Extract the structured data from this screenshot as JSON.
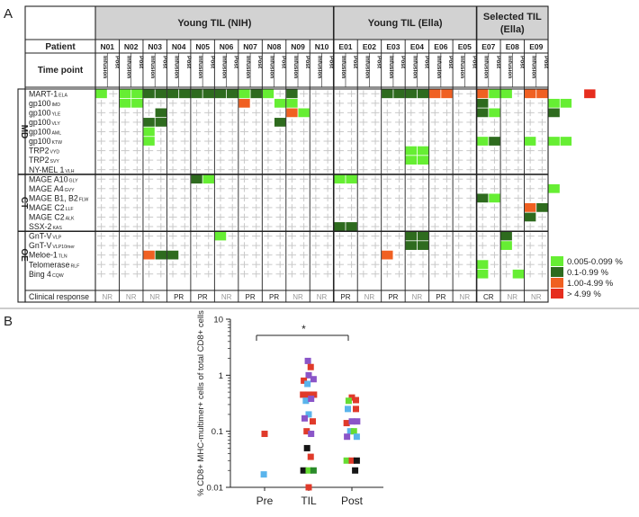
{
  "panel_a": {
    "label": "A",
    "header_row1": "Patient",
    "header_row2": "Time point",
    "infusion_label": "Infusion",
    "post_label": "Post",
    "groups": [
      {
        "name": "Young TIL (NIH)"
      },
      {
        "name": "Young TIL (Ella)"
      },
      {
        "name": "Selected TIL",
        "name2": "(Ella)"
      }
    ],
    "patients": [
      "N01",
      "N02",
      "N03",
      "N04",
      "N05",
      "N06",
      "N07",
      "N08",
      "N09",
      "N10",
      "E01",
      "E02",
      "E03",
      "E04",
      "E06",
      "E05",
      "E07",
      "E08",
      "E09"
    ],
    "categories": [
      {
        "name": "MD",
        "rows": [
          {
            "label": "MART-1",
            "sub": "ELA"
          },
          {
            "label": "gp100",
            "sub": "IMD"
          },
          {
            "label": "gp100",
            "sub": "YLE"
          },
          {
            "label": "gp100",
            "sub": "VLY"
          },
          {
            "label": "gp100",
            "sub": "AML"
          },
          {
            "label": "gp100",
            "sub": "KTW"
          },
          {
            "label": "TRP2",
            "sub": "VYD"
          },
          {
            "label": "TRP2",
            "sub": "SVY"
          },
          {
            "label": "NY-MEL 1",
            "sub": "VLH"
          }
        ]
      },
      {
        "name": "CT",
        "rows": [
          {
            "label": "MAGE A10",
            "sub": "GLY"
          },
          {
            "label": "MAGE A4",
            "sub": "GVY"
          },
          {
            "label": "MAGE B1, B2",
            "sub": "FLW"
          },
          {
            "label": "MAGE C2",
            "sub": "LLF"
          },
          {
            "label": "MAGE C2",
            "sub": "ALK"
          },
          {
            "label": "SSX-2",
            "sub": "KAS"
          }
        ]
      },
      {
        "name": "OE",
        "rows": [
          {
            "label": "GnT-V",
            "sub": "VLP"
          },
          {
            "label": "GnT-V",
            "sub": "VLP10mer"
          },
          {
            "label": "Meloe-1",
            "sub": "TLN"
          },
          {
            "label": "Telomerase",
            "sub": "RLF"
          },
          {
            "label": "Bing 4",
            "sub": "CQW"
          }
        ]
      }
    ],
    "clinical_response_label": "Clinical response",
    "clinical_responses": [
      "NR",
      "NR",
      "NR",
      "PR",
      "PR",
      "NR",
      "PR",
      "PR",
      "NR",
      "NR",
      "PR",
      "NR",
      "PR",
      "NR",
      "PR",
      "NR",
      "CR",
      "NR",
      "NR"
    ],
    "colors": {
      "c1": "#66ee33",
      "c2": "#2e6b1e",
      "c3": "#f06022",
      "c4": "#e62d1e",
      "grid": "#c9c9c9",
      "header": "#d2d2d2"
    },
    "cells": [
      [
        1,
        0,
        1,
        1,
        2,
        2,
        2,
        2,
        2,
        2,
        2,
        2,
        1,
        2,
        1,
        0,
        2,
        0,
        0,
        0,
        0,
        0,
        0,
        0,
        2,
        2,
        2,
        2,
        3,
        3,
        0,
        0,
        3,
        1,
        1,
        0,
        3,
        3,
        0,
        0,
        0,
        4
      ],
      [
        0,
        0,
        1,
        1,
        0,
        0,
        0,
        0,
        0,
        0,
        0,
        0,
        3,
        0,
        0,
        1,
        1,
        0,
        0,
        0,
        0,
        0,
        0,
        0,
        0,
        0,
        0,
        0,
        0,
        0,
        0,
        0,
        2,
        0,
        0,
        0,
        0,
        0,
        1,
        1,
        0,
        0
      ],
      [
        0,
        0,
        0,
        0,
        0,
        2,
        0,
        0,
        0,
        0,
        0,
        0,
        0,
        0,
        0,
        0,
        3,
        1,
        0,
        0,
        0,
        0,
        0,
        0,
        0,
        0,
        0,
        0,
        0,
        0,
        0,
        0,
        2,
        1,
        0,
        0,
        0,
        0,
        2,
        0,
        0,
        0
      ],
      [
        0,
        0,
        0,
        0,
        2,
        2,
        0,
        0,
        0,
        0,
        0,
        0,
        0,
        0,
        0,
        2,
        0,
        0,
        0,
        0,
        0,
        0,
        0,
        0,
        0,
        0,
        0,
        0,
        0,
        0,
        0,
        0,
        0,
        0,
        0,
        0,
        0,
        0,
        0,
        0,
        0,
        0
      ],
      [
        0,
        0,
        0,
        0,
        1,
        0,
        0,
        0,
        0,
        0,
        0,
        0,
        0,
        0,
        0,
        0,
        0,
        0,
        0,
        0,
        0,
        0,
        0,
        0,
        0,
        0,
        0,
        0,
        0,
        0,
        0,
        0,
        0,
        0,
        0,
        0,
        0,
        0,
        0,
        0,
        0,
        0
      ],
      [
        0,
        0,
        0,
        0,
        1,
        0,
        0,
        0,
        0,
        0,
        0,
        0,
        0,
        0,
        0,
        0,
        0,
        0,
        0,
        0,
        0,
        0,
        0,
        0,
        0,
        0,
        0,
        0,
        0,
        0,
        0,
        0,
        1,
        2,
        0,
        0,
        1,
        0,
        1,
        1,
        0,
        0
      ],
      [
        0,
        0,
        0,
        0,
        0,
        0,
        0,
        0,
        0,
        0,
        0,
        0,
        0,
        0,
        0,
        0,
        0,
        0,
        0,
        0,
        0,
        0,
        0,
        0,
        0,
        0,
        1,
        1,
        0,
        0,
        0,
        0,
        0,
        0,
        0,
        0,
        0,
        0,
        0,
        0,
        0,
        0
      ],
      [
        0,
        0,
        0,
        0,
        0,
        0,
        0,
        0,
        0,
        0,
        0,
        0,
        0,
        0,
        0,
        0,
        0,
        0,
        0,
        0,
        0,
        0,
        0,
        0,
        0,
        0,
        1,
        1,
        0,
        0,
        0,
        0,
        0,
        0,
        0,
        0,
        0,
        0,
        0,
        0,
        0,
        0
      ],
      [
        0,
        0,
        0,
        0,
        0,
        0,
        0,
        0,
        0,
        0,
        0,
        0,
        0,
        0,
        0,
        0,
        0,
        0,
        0,
        0,
        0,
        0,
        0,
        0,
        0,
        0,
        0,
        0,
        0,
        0,
        0,
        0,
        0,
        0,
        0,
        0,
        0,
        0,
        0,
        0,
        0,
        0
      ],
      [
        0,
        0,
        0,
        0,
        0,
        0,
        0,
        0,
        2,
        1,
        0,
        0,
        0,
        0,
        0,
        0,
        0,
        0,
        0,
        0,
        1,
        1,
        0,
        0,
        0,
        0,
        0,
        0,
        0,
        0,
        0,
        0,
        0,
        0,
        0,
        0,
        0,
        0,
        0,
        0,
        0,
        0
      ],
      [
        0,
        0,
        0,
        0,
        0,
        0,
        0,
        0,
        0,
        0,
        0,
        0,
        0,
        0,
        0,
        0,
        0,
        0,
        0,
        0,
        0,
        0,
        0,
        0,
        0,
        0,
        0,
        0,
        0,
        0,
        0,
        0,
        0,
        0,
        0,
        0,
        0,
        0,
        1,
        0,
        0,
        0
      ],
      [
        0,
        0,
        0,
        0,
        0,
        0,
        0,
        0,
        0,
        0,
        0,
        0,
        0,
        0,
        0,
        0,
        0,
        0,
        0,
        0,
        0,
        0,
        0,
        0,
        0,
        0,
        0,
        0,
        0,
        0,
        0,
        0,
        2,
        1,
        0,
        0,
        0,
        0,
        0,
        0,
        0,
        0
      ],
      [
        0,
        0,
        0,
        0,
        0,
        0,
        0,
        0,
        0,
        0,
        0,
        0,
        0,
        0,
        0,
        0,
        0,
        0,
        0,
        0,
        0,
        0,
        0,
        0,
        0,
        0,
        0,
        0,
        0,
        0,
        0,
        0,
        0,
        0,
        0,
        0,
        3,
        2,
        0,
        0,
        0,
        0
      ],
      [
        0,
        0,
        0,
        0,
        0,
        0,
        0,
        0,
        0,
        0,
        0,
        0,
        0,
        0,
        0,
        0,
        0,
        0,
        0,
        0,
        0,
        0,
        0,
        0,
        0,
        0,
        0,
        0,
        0,
        0,
        0,
        0,
        0,
        0,
        0,
        0,
        2,
        0,
        0,
        0,
        0,
        0
      ],
      [
        0,
        0,
        0,
        0,
        0,
        0,
        0,
        0,
        0,
        0,
        0,
        0,
        0,
        0,
        0,
        0,
        0,
        0,
        0,
        0,
        2,
        2,
        0,
        0,
        0,
        0,
        0,
        0,
        0,
        0,
        0,
        0,
        0,
        0,
        0,
        0,
        0,
        0,
        0,
        0,
        0,
        0
      ],
      [
        0,
        0,
        0,
        0,
        0,
        0,
        0,
        0,
        0,
        0,
        1,
        0,
        0,
        0,
        0,
        0,
        0,
        0,
        0,
        0,
        0,
        0,
        0,
        0,
        0,
        0,
        2,
        2,
        0,
        0,
        0,
        0,
        0,
        0,
        2,
        0,
        0,
        0,
        0,
        0,
        0,
        0
      ],
      [
        0,
        0,
        0,
        0,
        0,
        0,
        0,
        0,
        0,
        0,
        0,
        0,
        0,
        0,
        0,
        0,
        0,
        0,
        0,
        0,
        0,
        0,
        0,
        0,
        0,
        0,
        2,
        2,
        0,
        0,
        0,
        0,
        0,
        0,
        1,
        0,
        0,
        0,
        0,
        0,
        0,
        0
      ],
      [
        0,
        0,
        0,
        0,
        3,
        2,
        2,
        0,
        0,
        0,
        0,
        0,
        0,
        0,
        0,
        0,
        0,
        0,
        0,
        0,
        0,
        0,
        0,
        0,
        3,
        0,
        0,
        0,
        0,
        0,
        0,
        0,
        0,
        0,
        0,
        0,
        0,
        0,
        0,
        0,
        0,
        0
      ],
      [
        0,
        0,
        0,
        0,
        0,
        0,
        0,
        0,
        0,
        0,
        0,
        0,
        0,
        0,
        0,
        0,
        0,
        0,
        0,
        0,
        0,
        0,
        0,
        0,
        0,
        0,
        0,
        0,
        0,
        0,
        0,
        0,
        1,
        0,
        0,
        0,
        0,
        0,
        0,
        0,
        0,
        0
      ],
      [
        0,
        0,
        0,
        0,
        0,
        0,
        0,
        0,
        0,
        0,
        0,
        0,
        0,
        0,
        0,
        0,
        0,
        0,
        0,
        0,
        0,
        0,
        0,
        0,
        0,
        0,
        0,
        0,
        0,
        0,
        0,
        0,
        1,
        0,
        0,
        1,
        0,
        0,
        0,
        0,
        0,
        0
      ]
    ],
    "legend": [
      {
        "label": "0.005-0.099 %",
        "color": "#66ee33"
      },
      {
        "label": "0.1-0.99 %",
        "color": "#2e6b1e"
      },
      {
        "label": "1.00-4.99 %",
        "color": "#f06022"
      },
      {
        "label": "> 4.99 %",
        "color": "#e62d1e"
      }
    ]
  },
  "chart_data": {
    "type": "scatter",
    "panel_label": "B",
    "ylabel": "% CD8+ MHC-multimer+ cells of total CD8+ cells",
    "yscale": "log",
    "ylim": [
      0.01,
      10
    ],
    "yticks": [
      "0.01",
      "0.1",
      "1",
      "10"
    ],
    "categories": [
      "Pre",
      "TIL",
      "Post"
    ],
    "significance": "*",
    "series": [
      {
        "name": "Pre",
        "points": [
          {
            "x": 0.0,
            "y": 0.09,
            "color": "#e03a2a"
          },
          {
            "x": -0.02,
            "y": 0.017,
            "color": "#5ab4ec"
          }
        ]
      },
      {
        "name": "TIL",
        "points": [
          {
            "x": -0.02,
            "y": 1.8,
            "color": "#8a55c8"
          },
          {
            "x": 0.05,
            "y": 1.4,
            "color": "#e03a2a"
          },
          {
            "x": 0.0,
            "y": 1.0,
            "color": "#8a55c8"
          },
          {
            "x": -0.12,
            "y": 0.8,
            "color": "#e03a2a"
          },
          {
            "x": 0.12,
            "y": 0.85,
            "color": "#8a55c8"
          },
          {
            "x": -0.03,
            "y": 0.7,
            "color": "#5ab4ec"
          },
          {
            "x": -0.14,
            "y": 0.45,
            "color": "#e03a2a"
          },
          {
            "x": 0.0,
            "y": 0.45,
            "color": "#e03a2a"
          },
          {
            "x": 0.13,
            "y": 0.45,
            "color": "#e03a2a"
          },
          {
            "x": -0.07,
            "y": 0.35,
            "color": "#5ab4ec"
          },
          {
            "x": 0.06,
            "y": 0.38,
            "color": "#8a55c8"
          },
          {
            "x": 0.0,
            "y": 0.2,
            "color": "#5ab4ec"
          },
          {
            "x": -0.1,
            "y": 0.17,
            "color": "#8a55c8"
          },
          {
            "x": 0.1,
            "y": 0.15,
            "color": "#e03a2a"
          },
          {
            "x": -0.05,
            "y": 0.1,
            "color": "#e03a2a"
          },
          {
            "x": 0.06,
            "y": 0.09,
            "color": "#8a55c8"
          },
          {
            "x": -0.04,
            "y": 0.05,
            "color": "#151515"
          },
          {
            "x": 0.05,
            "y": 0.035,
            "color": "#e03a2a"
          },
          {
            "x": -0.13,
            "y": 0.02,
            "color": "#151515"
          },
          {
            "x": 0.0,
            "y": 0.02,
            "color": "#66dd33"
          },
          {
            "x": 0.12,
            "y": 0.02,
            "color": "#2a8a2a"
          },
          {
            "x": 0.0,
            "y": 0.01,
            "color": "#e03a2a"
          }
        ]
      },
      {
        "name": "Post",
        "points": [
          {
            "x": 0.0,
            "y": 0.4,
            "color": "#e03a2a"
          },
          {
            "x": -0.08,
            "y": 0.35,
            "color": "#66dd33"
          },
          {
            "x": 0.1,
            "y": 0.36,
            "color": "#e03a2a"
          },
          {
            "x": -0.1,
            "y": 0.25,
            "color": "#5ab4ec"
          },
          {
            "x": 0.1,
            "y": 0.25,
            "color": "#e03a2a"
          },
          {
            "x": -0.13,
            "y": 0.14,
            "color": "#e03a2a"
          },
          {
            "x": 0.0,
            "y": 0.15,
            "color": "#8a55c8"
          },
          {
            "x": 0.13,
            "y": 0.15,
            "color": "#8a55c8"
          },
          {
            "x": -0.04,
            "y": 0.1,
            "color": "#5ab4ec"
          },
          {
            "x": 0.05,
            "y": 0.1,
            "color": "#66dd33"
          },
          {
            "x": -0.12,
            "y": 0.08,
            "color": "#8a55c8"
          },
          {
            "x": 0.12,
            "y": 0.08,
            "color": "#5ab4ec"
          },
          {
            "x": -0.13,
            "y": 0.03,
            "color": "#66dd33"
          },
          {
            "x": 0.0,
            "y": 0.03,
            "color": "#e03a2a"
          },
          {
            "x": 0.12,
            "y": 0.03,
            "color": "#151515"
          },
          {
            "x": 0.08,
            "y": 0.02,
            "color": "#151515"
          }
        ]
      }
    ]
  }
}
